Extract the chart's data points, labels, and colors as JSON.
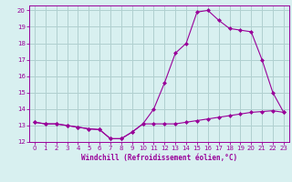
{
  "xlabel": "Windchill (Refroidissement éolien,°C)",
  "background_color": "#d8f0f0",
  "line_color": "#990099",
  "grid_color": "#b0d0d0",
  "xlim": [
    -0.5,
    23.5
  ],
  "ylim": [
    12,
    20.3
  ],
  "xticks": [
    0,
    1,
    2,
    3,
    4,
    5,
    6,
    7,
    8,
    9,
    10,
    11,
    12,
    13,
    14,
    15,
    16,
    17,
    18,
    19,
    20,
    21,
    22,
    23
  ],
  "yticks": [
    12,
    13,
    14,
    15,
    16,
    17,
    18,
    19,
    20
  ],
  "series1_x": [
    0,
    1,
    2,
    3,
    4,
    5,
    6,
    7,
    8,
    9,
    10,
    11,
    12,
    13,
    14,
    15,
    16,
    17,
    18,
    19,
    20,
    21,
    22,
    23
  ],
  "series1_y": [
    13.2,
    13.1,
    13.1,
    13.0,
    12.9,
    12.8,
    12.75,
    12.2,
    12.2,
    12.6,
    13.1,
    14.0,
    15.6,
    17.4,
    18.0,
    19.9,
    20.0,
    19.4,
    18.9,
    18.8,
    18.7,
    17.0,
    15.0,
    13.8
  ],
  "series2_x": [
    0,
    1,
    2,
    3,
    4,
    5,
    6,
    7,
    8,
    9,
    10,
    11,
    12,
    13,
    14,
    15,
    16,
    17,
    18,
    19,
    20,
    21,
    22,
    23
  ],
  "series2_y": [
    13.2,
    13.1,
    13.1,
    13.0,
    12.9,
    12.8,
    12.75,
    12.2,
    12.2,
    12.6,
    13.1,
    13.1,
    13.1,
    13.1,
    13.2,
    13.3,
    13.4,
    13.5,
    13.6,
    13.7,
    13.8,
    13.85,
    13.9,
    13.8
  ]
}
